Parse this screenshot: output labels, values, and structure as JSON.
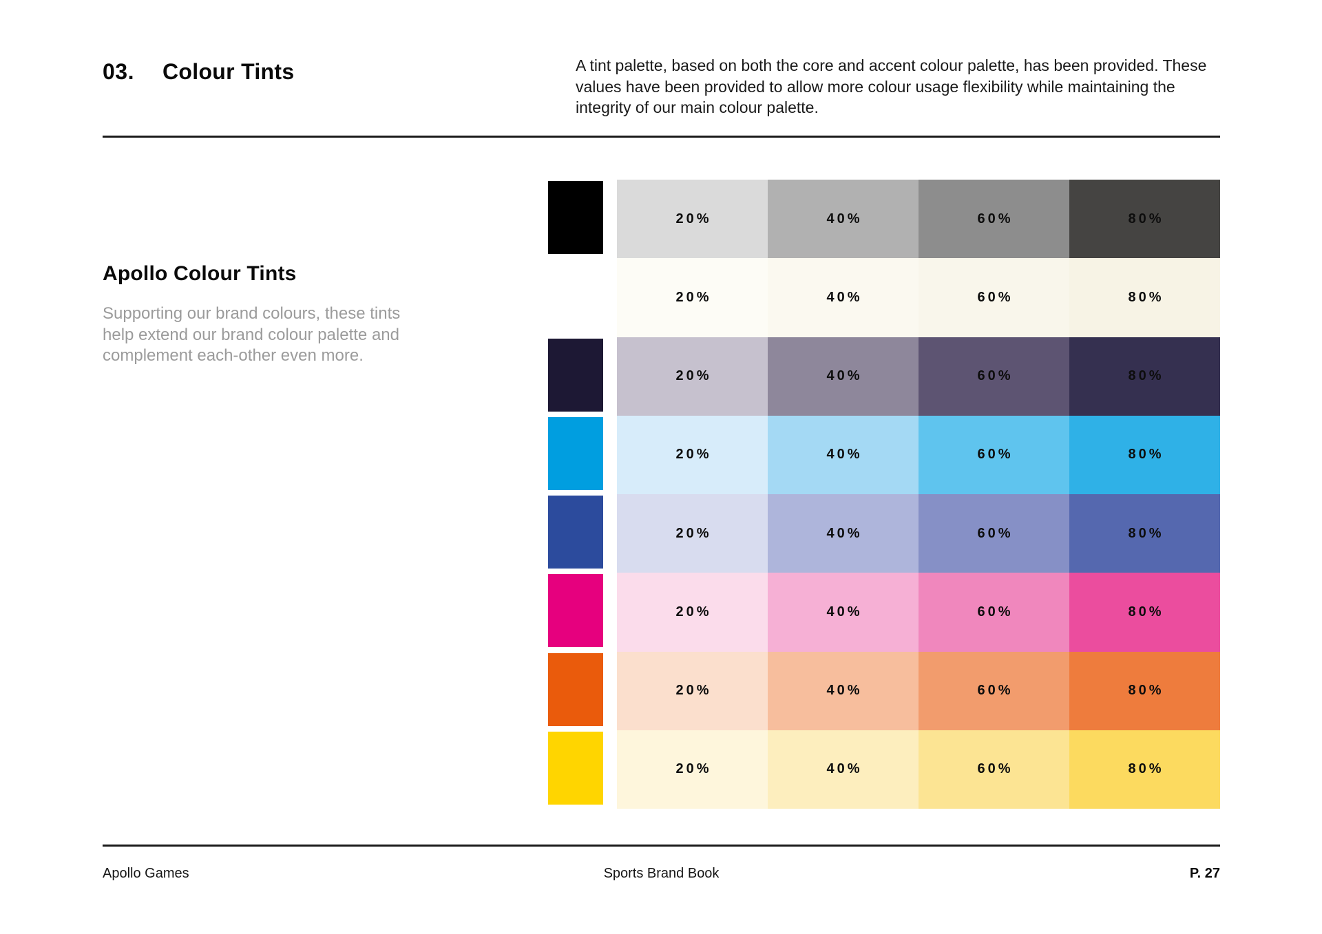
{
  "header": {
    "section_number": "03.",
    "title": "Colour Tints",
    "intro_lines": [
      "A tint palette, based on both the core and accent colour palette, has been provided. These",
      "values have been provided to allow more colour usage flexibility while maintaining the",
      "integrity of our main colour palette."
    ]
  },
  "sidebar": {
    "heading": "Apollo Colour Tints",
    "description_lines": [
      "Supporting our brand colours, these tints",
      "help extend our brand colour palette and",
      "complement each-other even more."
    ]
  },
  "tint_table": {
    "tint_labels": [
      "20%",
      "40%",
      "60%",
      "80%"
    ],
    "rows": [
      {
        "name": "black",
        "base": "#000000",
        "tints": [
          "#DADADA",
          "#B1B1B1",
          "#8D8D8D",
          "#454442"
        ]
      },
      {
        "name": "white",
        "base": "#FFFFFF",
        "tints": [
          "#FDFCF6",
          "#FBF9F0",
          "#F9F6EB",
          "#F7F3E5"
        ]
      },
      {
        "name": "navy",
        "base": "#1D1834",
        "tints": [
          "#C6C1CE",
          "#8E879B",
          "#5D5472",
          "#353050"
        ]
      },
      {
        "name": "cyan",
        "base": "#009EE0",
        "tints": [
          "#D7ECFA",
          "#A4D9F4",
          "#5FC4EE",
          "#2FB1E7"
        ]
      },
      {
        "name": "blue",
        "base": "#2C4B9D",
        "tints": [
          "#D8DCEF",
          "#AEB5DB",
          "#8690C6",
          "#5568AF"
        ]
      },
      {
        "name": "magenta",
        "base": "#E6007E",
        "tints": [
          "#FBDCEB",
          "#F6B0D5",
          "#F087BD",
          "#EB4D9E"
        ]
      },
      {
        "name": "orange",
        "base": "#EA5B0C",
        "tints": [
          "#FBDFCD",
          "#F7BE9D",
          "#F29C6D",
          "#EE7C3D"
        ]
      },
      {
        "name": "yellow",
        "base": "#FFD500",
        "tints": [
          "#FEF6DC",
          "#FDEEBE",
          "#FCE493",
          "#FCDA5F"
        ]
      }
    ]
  },
  "footer": {
    "left": "Apollo Games",
    "center": "Sports Brand Book",
    "right": "P. 27"
  }
}
